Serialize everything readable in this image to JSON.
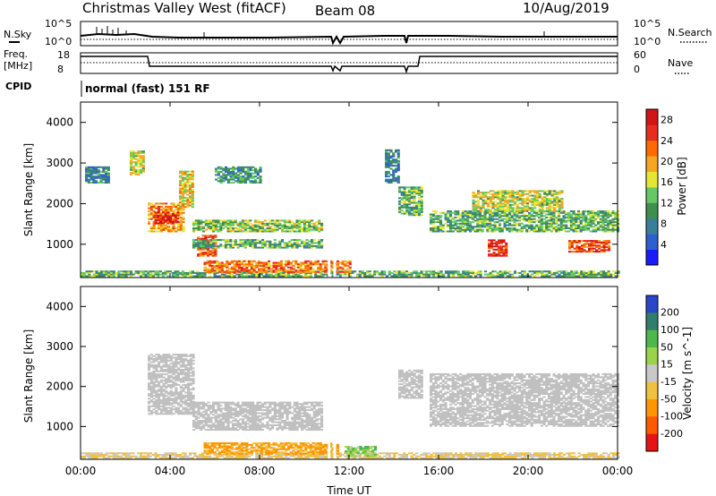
{
  "header": {
    "title": "Christmas Valley West (fitACF)",
    "beam": "Beam 08",
    "date": "10/Aug/2019"
  },
  "noise_panel": {
    "left_label": "N.Sky",
    "right_label": "N.Search",
    "left_ticks": [
      "10^5",
      "10^0"
    ],
    "right_ticks": [
      "10^5",
      "10^0"
    ]
  },
  "freq_panel": {
    "left_label_1": "Freq.",
    "left_label_2": "[MHz]",
    "right_label": "Nave",
    "left_ticks": [
      "18",
      "8"
    ],
    "right_ticks": [
      "60",
      "0"
    ]
  },
  "cpid": {
    "label": "CPID",
    "mode": "normal (fast) 151 RF"
  },
  "colors": {
    "power_scale": [
      "#1a1aff",
      "#2d5fd0",
      "#3a7f9a",
      "#3f8f4f",
      "#64c864",
      "#e6e632",
      "#f5a623",
      "#ff6a00",
      "#e62d1e",
      "#d21414"
    ],
    "velocity_scale": [
      "#e61414",
      "#ff5a00",
      "#ff9600",
      "#f0c040",
      "#c8c8c8",
      "#9ad24a",
      "#4cb84c",
      "#2f7f6a",
      "#2a46c8"
    ],
    "ground_scatter": "#c0c0c0"
  },
  "chart_data": [
    {
      "type": "heatmap",
      "panel": "power",
      "xlabel": "",
      "ylabel": "Slant Range [km]",
      "x_ticks": [
        "00:00",
        "04:00",
        "08:00",
        "12:00",
        "16:00",
        "20:00",
        "00:00"
      ],
      "x_range_hours": [
        0,
        24
      ],
      "y_ticks": [
        1000,
        2000,
        3000,
        4000
      ],
      "ylim": [
        180,
        4500
      ],
      "colorbar": {
        "label": "Power [dB]",
        "ticks": [
          4,
          8,
          12,
          16,
          20,
          24,
          28
        ],
        "range": [
          0,
          30
        ]
      },
      "regions": [
        {
          "t0": 0.0,
          "t1": 24.0,
          "r0": 200,
          "r1": 350,
          "value": 12
        },
        {
          "t0": 3.0,
          "t1": 4.6,
          "r0": 1300,
          "r1": 2000,
          "value": 20
        },
        {
          "t0": 3.3,
          "t1": 4.4,
          "r0": 1500,
          "r1": 1800,
          "value": 27
        },
        {
          "t0": 4.4,
          "t1": 5.0,
          "r0": 1900,
          "r1": 2800,
          "value": 18
        },
        {
          "t0": 2.2,
          "t1": 2.8,
          "r0": 2700,
          "r1": 3300,
          "value": 16
        },
        {
          "t0": 0.2,
          "t1": 1.2,
          "r0": 2500,
          "r1": 2900,
          "value": 8
        },
        {
          "t0": 5.2,
          "t1": 6.0,
          "r0": 700,
          "r1": 1200,
          "value": 24
        },
        {
          "t0": 5.0,
          "t1": 10.8,
          "r0": 1300,
          "r1": 1600,
          "value": 14
        },
        {
          "t0": 5.0,
          "t1": 10.8,
          "r0": 900,
          "r1": 1100,
          "value": 12
        },
        {
          "t0": 6.0,
          "t1": 8.0,
          "r0": 2500,
          "r1": 2900,
          "value": 10
        },
        {
          "t0": 5.5,
          "t1": 12.0,
          "r0": 300,
          "r1": 600,
          "value": 22
        },
        {
          "t0": 14.2,
          "t1": 15.2,
          "r0": 1700,
          "r1": 2400,
          "value": 12
        },
        {
          "t0": 15.6,
          "t1": 24.0,
          "r0": 1300,
          "r1": 1800,
          "value": 12
        },
        {
          "t0": 17.5,
          "t1": 21.5,
          "r0": 1800,
          "r1": 2300,
          "value": 16
        },
        {
          "t0": 18.2,
          "t1": 19.0,
          "r0": 700,
          "r1": 1100,
          "value": 27
        },
        {
          "t0": 21.8,
          "t1": 23.6,
          "r0": 800,
          "r1": 1100,
          "value": 24
        },
        {
          "t0": 13.6,
          "t1": 14.2,
          "r0": 2500,
          "r1": 3300,
          "value": 8
        }
      ]
    },
    {
      "type": "heatmap",
      "panel": "velocity",
      "xlabel": "Time UT",
      "ylabel": "Slant Range [km]",
      "x_ticks": [
        "00:00",
        "04:00",
        "08:00",
        "12:00",
        "16:00",
        "20:00",
        "00:00"
      ],
      "x_range_hours": [
        0,
        24
      ],
      "y_ticks": [
        1000,
        2000,
        3000,
        4000
      ],
      "ylim": [
        180,
        4500
      ],
      "colorbar": {
        "label": "Velocity [m s^-1]",
        "ticks": [
          200,
          100,
          50,
          15,
          -15,
          -50,
          -100,
          -200
        ]
      },
      "regions": [
        {
          "t0": 0.0,
          "t1": 24.0,
          "r0": 200,
          "r1": 350,
          "value": -20,
          "ground": false
        },
        {
          "t0": 3.0,
          "t1": 5.0,
          "r0": 1300,
          "r1": 2800,
          "value": 0,
          "ground": true
        },
        {
          "t0": 5.0,
          "t1": 10.8,
          "r0": 900,
          "r1": 1600,
          "value": 0,
          "ground": true
        },
        {
          "t0": 5.5,
          "t1": 11.5,
          "r0": 300,
          "r1": 600,
          "value": -60,
          "ground": false
        },
        {
          "t0": 11.8,
          "t1": 13.2,
          "r0": 250,
          "r1": 500,
          "value": 40,
          "ground": false
        },
        {
          "t0": 15.6,
          "t1": 24.0,
          "r0": 1000,
          "r1": 2300,
          "value": 0,
          "ground": true
        },
        {
          "t0": 14.2,
          "t1": 15.2,
          "r0": 1700,
          "r1": 2400,
          "value": 0,
          "ground": true
        }
      ]
    }
  ]
}
